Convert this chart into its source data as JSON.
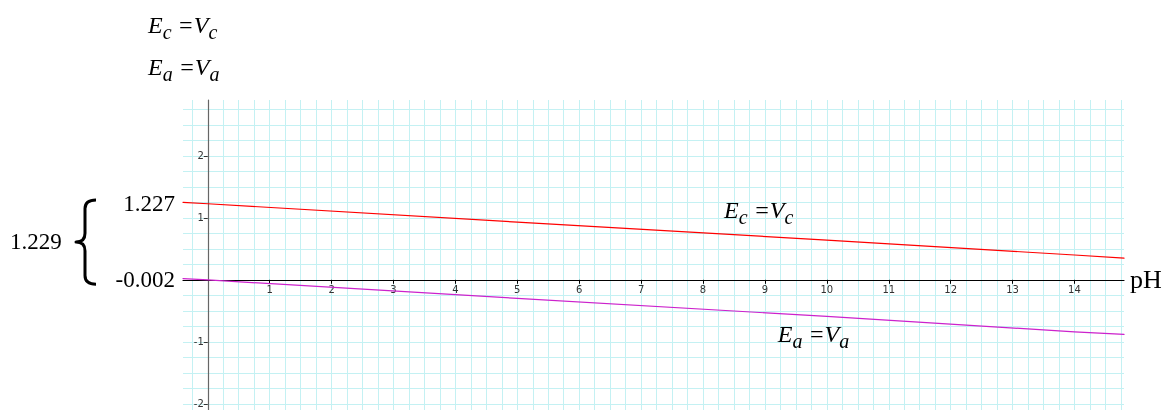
{
  "chart_data": {
    "type": "line",
    "xlabel": "pH",
    "annotations": [
      "E$_{c}$ =V$_{c}$",
      "E$_{a}$ =V$_{a}$",
      {
        "text": "1.227",
        "x": -0.4,
        "y": 1.227
      },
      {
        "text": "-0.002",
        "x": -0.4,
        "y": -0.002
      },
      "1.229"
    ],
    "x": [
      -0.4,
      0,
      5,
      10,
      14,
      14.8
    ],
    "series": [
      {
        "name": "E$_{c}$ =V$_{c}$",
        "color": "#ff0000",
        "values": [
          1.25,
          1.227,
          0.93,
          0.64,
          0.4,
          0.35
        ]
      },
      {
        "name": "E$_{a}$ =V$_{a}$",
        "color": "#cc22cc",
        "values": [
          0.02,
          -0.002,
          -0.3,
          -0.59,
          -0.84,
          -0.88
        ]
      }
    ],
    "xlim": [
      -0.4,
      14.8
    ],
    "ylim": [
      -2.1,
      2.9
    ],
    "xticks": [
      1,
      2,
      3,
      4,
      5,
      6,
      7,
      8,
      9,
      10,
      11,
      12,
      13,
      14
    ],
    "yticks": [
      -2,
      -1,
      1,
      2
    ],
    "grid": true,
    "marker": "none",
    "line_style": "solid"
  }
}
